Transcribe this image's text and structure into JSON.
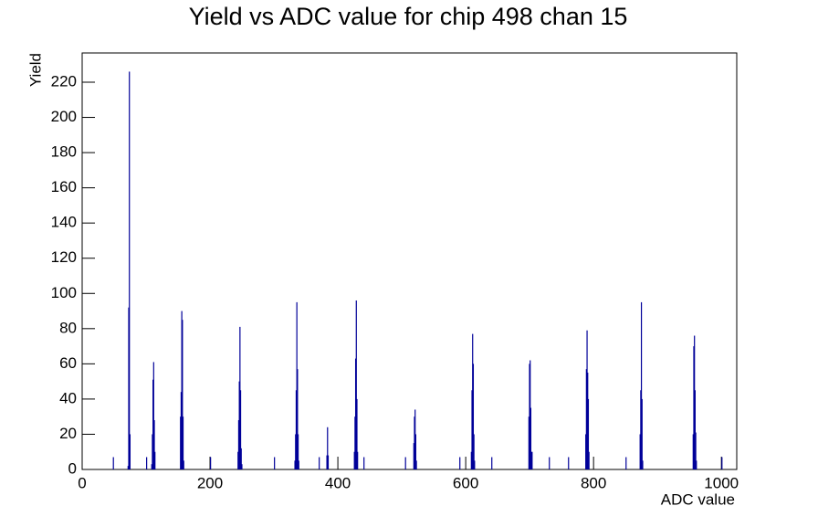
{
  "chart_data": {
    "type": "bar",
    "title": "Yield vs ADC value for chip 498 chan 15",
    "x_label": "ADC value",
    "y_label": "Yield",
    "color": "#000099",
    "x": [
      48,
      71,
      72,
      73,
      74,
      100,
      108,
      109,
      110,
      111,
      112,
      113,
      153,
      154,
      155,
      156,
      157,
      158,
      200,
      243,
      244,
      245,
      246,
      247,
      248,
      249,
      300,
      332,
      333,
      334,
      335,
      336,
      337,
      338,
      370,
      382,
      383,
      384,
      425,
      426,
      427,
      428,
      429,
      430,
      440,
      505,
      518,
      519,
      520,
      521,
      522,
      590,
      608,
      609,
      610,
      611,
      612,
      613,
      640,
      698,
      699,
      700,
      701,
      702,
      703,
      730,
      760,
      787,
      788,
      789,
      790,
      791,
      792,
      850,
      872,
      873,
      874,
      875,
      876,
      955,
      956,
      957,
      958,
      959,
      960,
      1000
    ],
    "values": [
      7,
      2,
      92,
      226,
      20,
      7,
      3,
      20,
      51,
      61,
      28,
      10,
      30,
      44,
      90,
      85,
      30,
      5,
      7,
      10,
      28,
      50,
      81,
      45,
      12,
      3,
      7,
      5,
      20,
      45,
      95,
      57,
      20,
      5,
      7,
      8,
      24,
      8,
      10,
      30,
      63,
      96,
      40,
      10,
      7,
      7,
      15,
      30,
      34,
      20,
      5,
      7,
      10,
      45,
      77,
      60,
      20,
      5,
      7,
      30,
      60,
      62,
      35,
      10,
      10,
      7,
      7,
      20,
      57,
      79,
      55,
      40,
      10,
      7,
      20,
      45,
      95,
      40,
      5,
      20,
      70,
      76,
      45,
      21,
      5,
      7
    ],
    "xlim": [
      0,
      1024
    ],
    "ylim": [
      0,
      236.6
    ],
    "xticks": [
      0,
      200,
      400,
      600,
      800,
      1000
    ],
    "yticks": [
      0,
      20,
      40,
      60,
      80,
      100,
      120,
      140,
      160,
      180,
      200,
      220
    ]
  }
}
